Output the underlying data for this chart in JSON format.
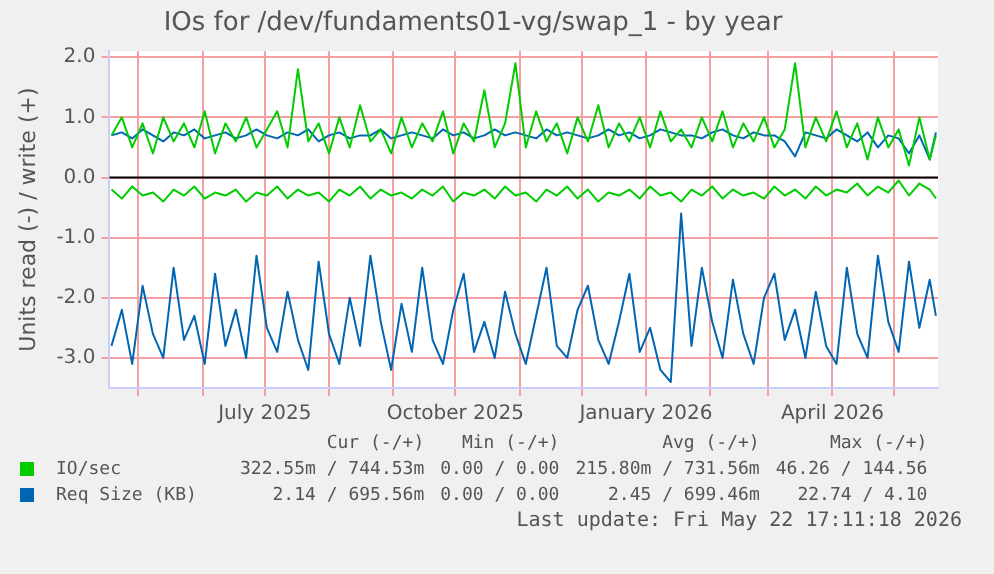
{
  "chart_data": {
    "type": "line",
    "title": "IOs for /dev/fundaments01-vg/swap_1 - by year",
    "ylabel": "Units read (-) / write (+)",
    "x": [
      "2025-04-18",
      "2025-04-23",
      "2025-04-28",
      "2025-05-03",
      "2025-05-08",
      "2025-05-13",
      "2025-05-18",
      "2025-05-23",
      "2025-05-28",
      "2025-06-02",
      "2025-06-07",
      "2025-06-12",
      "2025-06-17",
      "2025-06-22",
      "2025-06-27",
      "2025-07-02",
      "2025-07-07",
      "2025-07-12",
      "2025-07-17",
      "2025-07-22",
      "2025-07-27",
      "2025-08-01",
      "2025-08-06",
      "2025-08-11",
      "2025-08-16",
      "2025-08-21",
      "2025-08-26",
      "2025-08-31",
      "2025-09-05",
      "2025-09-10",
      "2025-09-15",
      "2025-09-20",
      "2025-09-25",
      "2025-09-30",
      "2025-10-05",
      "2025-10-10",
      "2025-10-15",
      "2025-10-20",
      "2025-10-25",
      "2025-10-30",
      "2025-11-04",
      "2025-11-09",
      "2025-11-14",
      "2025-11-19",
      "2025-11-24",
      "2025-11-29",
      "2025-12-04",
      "2025-12-09",
      "2025-12-14",
      "2025-12-19",
      "2025-12-24",
      "2025-12-29",
      "2026-01-03",
      "2026-01-08",
      "2026-01-13",
      "2026-01-18",
      "2026-01-23",
      "2026-01-28",
      "2026-02-02",
      "2026-02-07",
      "2026-02-12",
      "2026-02-17",
      "2026-02-22",
      "2026-02-27",
      "2026-03-04",
      "2026-03-09",
      "2026-03-14",
      "2026-03-19",
      "2026-03-24",
      "2026-03-29",
      "2026-04-03",
      "2026-04-08",
      "2026-04-13",
      "2026-04-18",
      "2026-04-23",
      "2026-04-28",
      "2026-05-03",
      "2026-05-08",
      "2026-05-13",
      "2026-05-18",
      "2026-05-21"
    ],
    "series": [
      {
        "name": "IO/sec",
        "color": "#00cc00",
        "values": [
          0.7,
          1.0,
          0.5,
          0.9,
          0.4,
          1.0,
          0.6,
          0.9,
          0.5,
          1.1,
          0.4,
          0.9,
          0.6,
          1.0,
          0.5,
          0.8,
          1.1,
          0.5,
          1.8,
          0.6,
          0.9,
          0.4,
          1.0,
          0.5,
          1.2,
          0.6,
          0.8,
          0.4,
          1.0,
          0.5,
          0.9,
          0.6,
          1.1,
          0.4,
          0.9,
          0.6,
          1.45,
          0.5,
          0.9,
          1.9,
          0.5,
          1.1,
          0.6,
          0.9,
          0.4,
          1.0,
          0.6,
          1.2,
          0.5,
          0.9,
          0.6,
          1.0,
          0.5,
          1.1,
          0.6,
          0.8,
          0.5,
          1.0,
          0.6,
          1.1,
          0.5,
          0.9,
          0.6,
          1.0,
          0.5,
          0.8,
          1.9,
          0.5,
          1.0,
          0.6,
          1.1,
          0.5,
          0.9,
          0.3,
          1.0,
          0.5,
          0.8,
          0.2,
          1.0,
          0.3,
          0.7
        ]
      },
      {
        "color": "#00cc00",
        "values": [
          -0.2,
          -0.35,
          -0.15,
          -0.3,
          -0.25,
          -0.4,
          -0.2,
          -0.3,
          -0.15,
          -0.35,
          -0.25,
          -0.3,
          -0.2,
          -0.4,
          -0.25,
          -0.3,
          -0.15,
          -0.35,
          -0.2,
          -0.3,
          -0.25,
          -0.4,
          -0.2,
          -0.3,
          -0.15,
          -0.35,
          -0.2,
          -0.3,
          -0.25,
          -0.35,
          -0.2,
          -0.3,
          -0.15,
          -0.4,
          -0.25,
          -0.3,
          -0.2,
          -0.35,
          -0.15,
          -0.3,
          -0.25,
          -0.4,
          -0.2,
          -0.3,
          -0.15,
          -0.35,
          -0.2,
          -0.4,
          -0.25,
          -0.3,
          -0.2,
          -0.35,
          -0.15,
          -0.3,
          -0.25,
          -0.4,
          -0.2,
          -0.3,
          -0.15,
          -0.35,
          -0.2,
          -0.3,
          -0.25,
          -0.35,
          -0.15,
          -0.3,
          -0.2,
          -0.35,
          -0.15,
          -0.3,
          -0.2,
          -0.25,
          -0.1,
          -0.3,
          -0.15,
          -0.25,
          -0.05,
          -0.3,
          -0.1,
          -0.2,
          -0.35
        ]
      },
      {
        "name": "Req Size (KB)",
        "color": "#0066b3",
        "values": [
          0.7,
          0.75,
          0.65,
          0.8,
          0.7,
          0.6,
          0.75,
          0.7,
          0.8,
          0.65,
          0.7,
          0.75,
          0.65,
          0.7,
          0.8,
          0.7,
          0.65,
          0.75,
          0.7,
          0.8,
          0.6,
          0.7,
          0.75,
          0.65,
          0.7,
          0.7,
          0.8,
          0.65,
          0.7,
          0.75,
          0.7,
          0.65,
          0.8,
          0.7,
          0.75,
          0.65,
          0.7,
          0.8,
          0.7,
          0.75,
          0.7,
          0.65,
          0.8,
          0.7,
          0.75,
          0.7,
          0.65,
          0.7,
          0.8,
          0.7,
          0.75,
          0.65,
          0.7,
          0.8,
          0.75,
          0.7,
          0.7,
          0.65,
          0.75,
          0.8,
          0.7,
          0.65,
          0.75,
          0.7,
          0.7,
          0.6,
          0.35,
          0.75,
          0.7,
          0.65,
          0.8,
          0.7,
          0.6,
          0.75,
          0.5,
          0.7,
          0.65,
          0.4,
          0.7,
          0.3,
          0.75
        ]
      },
      {
        "color": "#0066b3",
        "values": [
          -2.8,
          -2.2,
          -3.1,
          -1.8,
          -2.6,
          -3.0,
          -1.5,
          -2.7,
          -2.3,
          -3.1,
          -1.6,
          -2.8,
          -2.2,
          -3.0,
          -1.3,
          -2.5,
          -2.9,
          -1.9,
          -2.7,
          -3.2,
          -1.4,
          -2.6,
          -3.1,
          -2.0,
          -2.8,
          -1.3,
          -2.4,
          -3.2,
          -2.1,
          -2.9,
          -1.5,
          -2.7,
          -3.1,
          -2.2,
          -1.6,
          -2.9,
          -2.4,
          -3.0,
          -1.9,
          -2.6,
          -3.1,
          -2.3,
          -1.5,
          -2.8,
          -3.0,
          -2.2,
          -1.8,
          -2.7,
          -3.1,
          -2.4,
          -1.6,
          -2.9,
          -2.5,
          -3.2,
          -3.4,
          -0.6,
          -2.8,
          -1.5,
          -2.4,
          -3.0,
          -1.7,
          -2.6,
          -3.1,
          -2.0,
          -1.6,
          -2.7,
          -2.2,
          -3.0,
          -1.9,
          -2.8,
          -3.1,
          -1.5,
          -2.6,
          -3.0,
          -1.3,
          -2.4,
          -2.9,
          -1.4,
          -2.5,
          -1.7,
          -2.3
        ]
      }
    ],
    "xlim": [
      "2025-04-17",
      "2026-05-22"
    ],
    "xticks": [
      {
        "value": "2025-05-01",
        "label": null
      },
      {
        "value": "2025-06-01",
        "label": null
      },
      {
        "value": "2025-07-01",
        "label": "July 2025"
      },
      {
        "value": "2025-08-01",
        "label": null
      },
      {
        "value": "2025-09-01",
        "label": null
      },
      {
        "value": "2025-10-01",
        "label": "October 2025"
      },
      {
        "value": "2025-11-01",
        "label": null
      },
      {
        "value": "2025-12-01",
        "label": null
      },
      {
        "value": "2026-01-01",
        "label": "January 2026"
      },
      {
        "value": "2026-02-01",
        "label": null
      },
      {
        "value": "2026-03-01",
        "label": null
      },
      {
        "value": "2026-04-01",
        "label": "April 2026"
      },
      {
        "value": "2026-05-01",
        "label": null
      }
    ],
    "ylim": [
      -3.5,
      2.1
    ],
    "yticks": [
      {
        "value": -3,
        "label": "-3.0"
      },
      {
        "value": -2,
        "label": "-2.0"
      },
      {
        "value": -1,
        "label": "-1.0"
      },
      {
        "value": 0,
        "label": "0.0"
      },
      {
        "value": 1,
        "label": "1.0"
      },
      {
        "value": 2,
        "label": "2.0"
      }
    ],
    "ref_lines": [
      {
        "axis": "y",
        "value": 0,
        "color": "#000000"
      }
    ],
    "grid": true,
    "legend": "bottom",
    "marker": "none",
    "line_style": "solid",
    "annotations": [
      "Cur (-/+)",
      "Min (-/+)",
      "Avg (-/+)",
      "Max (-/+)",
      "322.55m / 744.53m",
      "0.00 / 0.00",
      "215.80m / 731.56m",
      "46.26 / 144.56",
      "2.14 / 695.56m",
      "0.00 / 0.00",
      "2.45 / 699.46m",
      "22.74 / 4.10",
      "Last update: Fri May 22 17:11:18 2026"
    ]
  }
}
